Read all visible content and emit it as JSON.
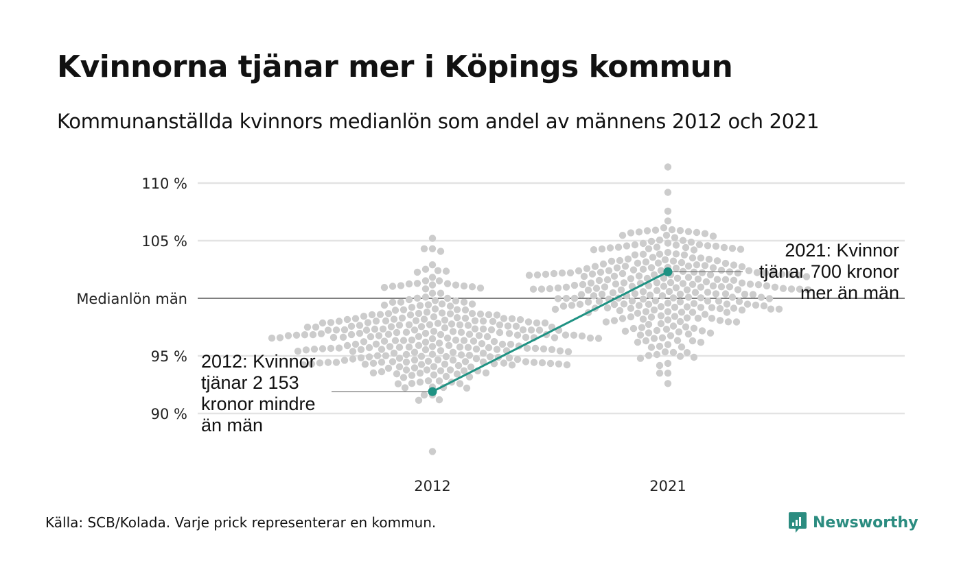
{
  "header": {
    "title": "Kvinnorna tjänar mer i Köpings kommun",
    "subtitle": "Kommunanställda kvinnors medianlön som andel av männens 2012 och 2021"
  },
  "footer": {
    "source": "Källa: SCB/Kolada. Varje prick representerar en kommun.",
    "brand": "Newsworthy"
  },
  "colors": {
    "highlight": "#1f9283",
    "dots": "#cccccc",
    "grid": "#e3e3e3",
    "reference": "#333333",
    "brand": "#2b8c80"
  },
  "chart_data": {
    "type": "scatter",
    "subtype": "beeswarm",
    "categories": [
      "2012",
      "2021"
    ],
    "y_unit": "%",
    "y_ticks": [
      {
        "value": 90,
        "label": "90 %"
      },
      {
        "value": 95,
        "label": "95 %"
      },
      {
        "value": 100,
        "label": "Medianlön män"
      },
      {
        "value": 105,
        "label": "105 %"
      },
      {
        "value": 110,
        "label": "110 %"
      }
    ],
    "ylim": [
      86,
      112
    ],
    "grid": true,
    "reference_line": 100,
    "distributions": [
      {
        "category": "2012",
        "min": 86.7,
        "max": 105.2,
        "center": 96.5,
        "spread": 2.6,
        "count": 290
      },
      {
        "category": "2021",
        "min": 92.6,
        "max": 111.4,
        "center": 101.2,
        "spread": 2.6,
        "count": 290
      }
    ],
    "highlight": {
      "values": [
        91.9,
        102.3
      ],
      "annotations": [
        {
          "category": "2012",
          "value": 91.9,
          "text": "2012: Kvinnor tjänar 2 153 kronor mindre än män",
          "lines": [
            "2012: Kvinnor",
            "tjänar 2 153",
            "kronor mindre",
            "än män"
          ]
        },
        {
          "category": "2021",
          "value": 102.3,
          "text": "2021: Kvinnor tjänar 700 kronor mer än män",
          "lines": [
            "2021: Kvinnor",
            "tjänar 700 kronor",
            "mer än män"
          ]
        }
      ]
    }
  }
}
